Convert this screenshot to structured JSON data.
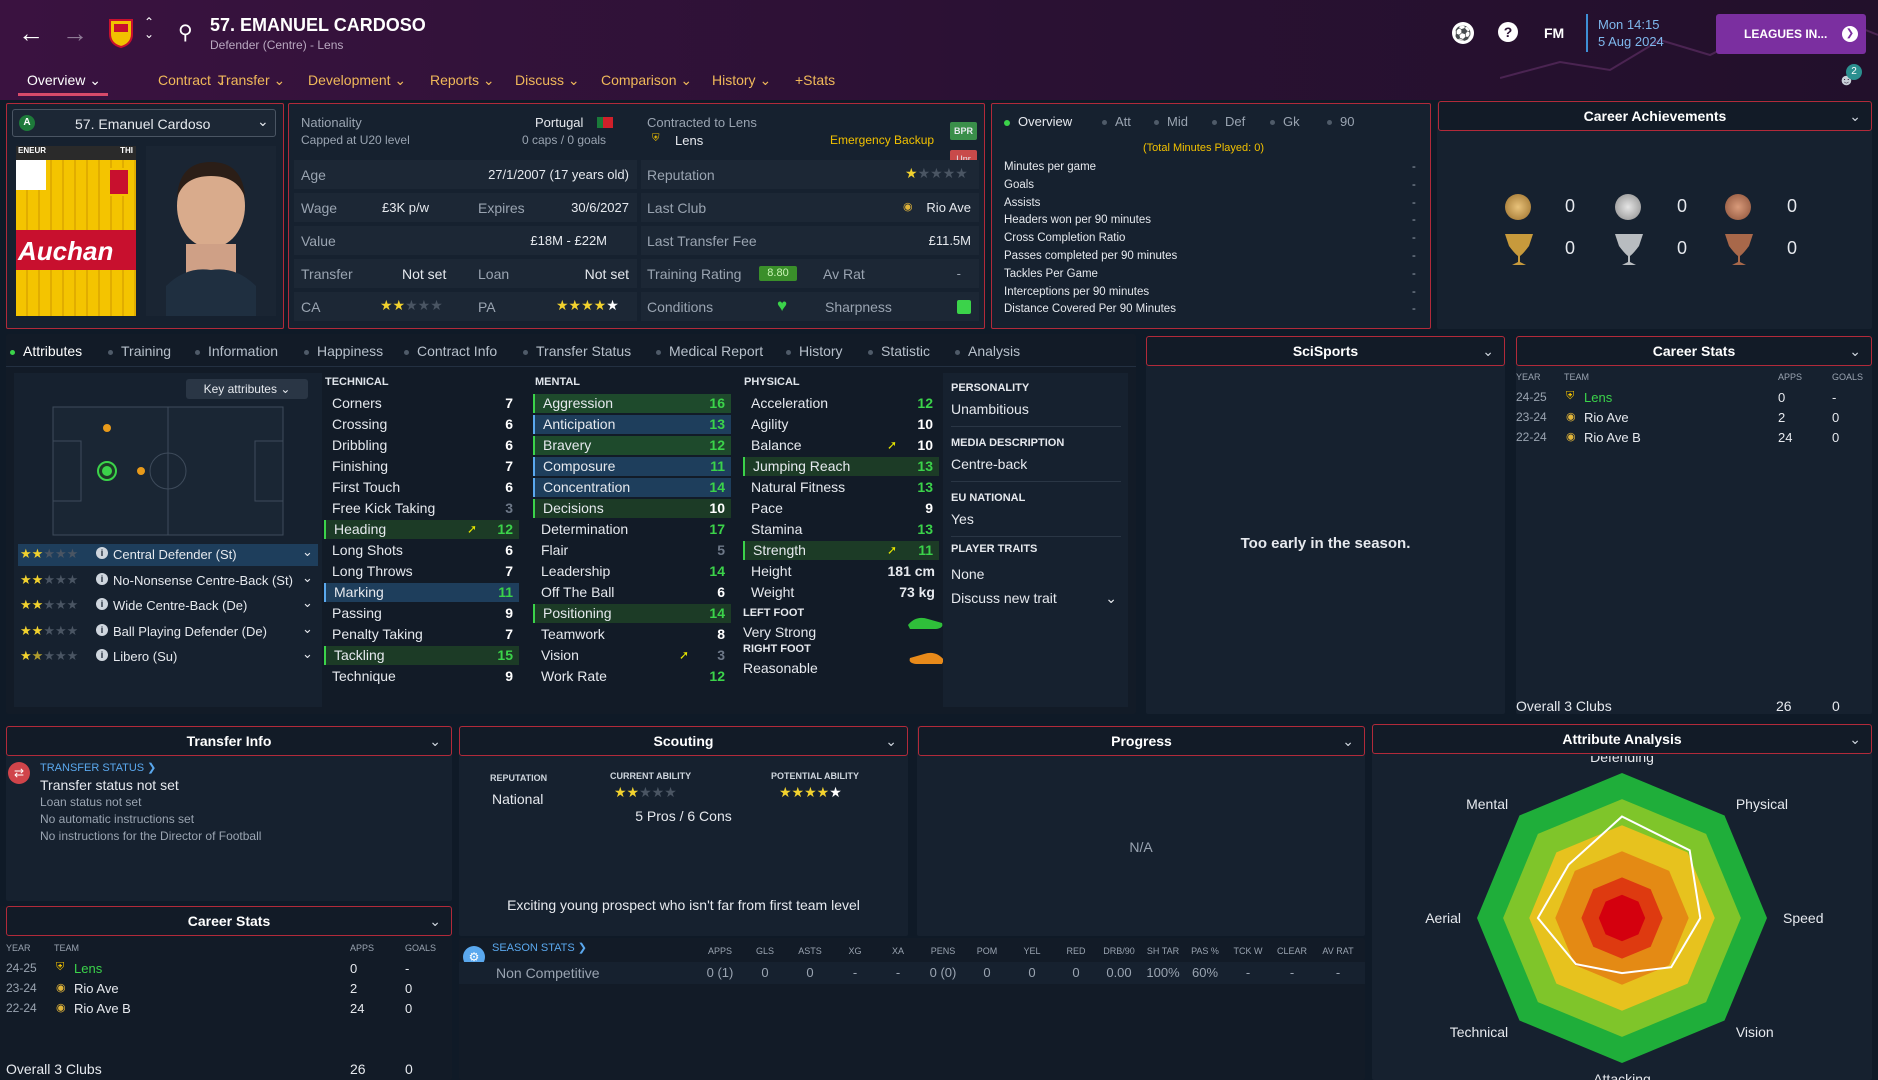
{
  "header": {
    "player_title": "57. EMANUEL CARDOSO",
    "player_subtitle": "Defender (Centre) - Lens",
    "fm_label": "FM",
    "datetime_line1": "Mon 14:15",
    "datetime_line2": "5 Aug 2024",
    "leagues_button": "LEAGUES IN...",
    "notif_count": "2",
    "tabs": [
      "Overview",
      "Contract",
      "Transfer",
      "Development",
      "Reports",
      "Discuss",
      "Comparison",
      "History",
      "+Stats"
    ]
  },
  "player_card": {
    "selector_name": "57. Emanuel Cardoso",
    "kit_text": "Auchan",
    "kit_top_left": "ENEUR",
    "kit_top_right": "THI"
  },
  "info": {
    "nationality_label": "Nationality",
    "nationality_value": "Portugal",
    "capped_label": "Capped at U20 level",
    "caps_goals": "0 caps / 0 goals",
    "contracted_label": "Contracted to Lens",
    "contracted_club": "Lens",
    "emergency": "Emergency Backup",
    "badge_bpr": "BPR",
    "badge_unr": "Unr",
    "age_label": "Age",
    "age_value": "27/1/2007 (17 years old)",
    "reputation_label": "Reputation",
    "wage_label": "Wage",
    "wage_value": "£3K p/w",
    "expires_label": "Expires",
    "expires_value": "30/6/2027",
    "lastclub_label": "Last Club",
    "lastclub_value": "Rio Ave",
    "value_label": "Value",
    "value_value": "£18M - £22M",
    "fee_label": "Last Transfer Fee",
    "fee_value": "£11.5M",
    "transfer_label": "Transfer",
    "transfer_value": "Not set",
    "loan_label": "Loan",
    "loan_value": "Not set",
    "training_label": "Training Rating",
    "training_value": "8.80",
    "avrat_label": "Av Rat",
    "avrat_value": "-",
    "ca_label": "CA",
    "pa_label": "PA",
    "conditions_label": "Conditions",
    "sharpness_label": "Sharpness"
  },
  "overview_stats": {
    "tabs": [
      "Overview",
      "Att",
      "Mid",
      "Def",
      "Gk",
      "90"
    ],
    "total_minutes": "(Total Minutes Played: 0)",
    "rows": [
      {
        "label": "Minutes per game",
        "value": "-"
      },
      {
        "label": "Goals",
        "value": "-"
      },
      {
        "label": "Assists",
        "value": "-"
      },
      {
        "label": "Headers won per 90 minutes",
        "value": "-"
      },
      {
        "label": "Cross Completion Ratio",
        "value": "-"
      },
      {
        "label": "Passes completed per 90 minutes",
        "value": "-"
      },
      {
        "label": "Tackles Per Game",
        "value": "-"
      },
      {
        "label": "Interceptions per 90 minutes",
        "value": "-"
      },
      {
        "label": "Distance Covered Per 90 Minutes",
        "value": "-"
      }
    ]
  },
  "achievements": {
    "title": "Career Achievements",
    "medals": [
      "0",
      "0",
      "0"
    ],
    "trophies": [
      "0",
      "0",
      "0"
    ]
  },
  "subtabs": [
    "Attributes",
    "Training",
    "Information",
    "Happiness",
    "Contract Info",
    "Transfer Status",
    "Medical Report",
    "History",
    "Statistic",
    "Analysis"
  ],
  "positions": {
    "key_attributes": "Key attributes",
    "roles": [
      {
        "label": "Central Defender (St)",
        "stars": 2
      },
      {
        "label": "No-Nonsense Centre-Back (St)",
        "stars": 2
      },
      {
        "label": "Wide Centre-Back (De)",
        "stars": 2
      },
      {
        "label": "Ball Playing Defender (De)",
        "stars": 2
      },
      {
        "label": "Libero (Su)",
        "stars": 1.5
      }
    ]
  },
  "attributes": {
    "technical_title": "TECHNICAL",
    "technical": [
      {
        "name": "Corners",
        "value": "7",
        "hl": "",
        "col": "white"
      },
      {
        "name": "Crossing",
        "value": "6",
        "hl": "",
        "col": "white"
      },
      {
        "name": "Dribbling",
        "value": "6",
        "hl": "",
        "col": "white"
      },
      {
        "name": "Finishing",
        "value": "7",
        "hl": "",
        "col": "white"
      },
      {
        "name": "First Touch",
        "value": "6",
        "hl": "",
        "col": "white"
      },
      {
        "name": "Free Kick Taking",
        "value": "3",
        "hl": "",
        "col": "dim"
      },
      {
        "name": "Heading",
        "value": "12",
        "hl": "dgreen",
        "col": "green",
        "arrow": true
      },
      {
        "name": "Long Shots",
        "value": "6",
        "hl": "",
        "col": "white"
      },
      {
        "name": "Long Throws",
        "value": "7",
        "hl": "",
        "col": "white"
      },
      {
        "name": "Marking",
        "value": "11",
        "hl": "blue",
        "col": "green"
      },
      {
        "name": "Passing",
        "value": "9",
        "hl": "",
        "col": "white"
      },
      {
        "name": "Penalty Taking",
        "value": "7",
        "hl": "",
        "col": "white"
      },
      {
        "name": "Tackling",
        "value": "15",
        "hl": "dgreen",
        "col": "green"
      },
      {
        "name": "Technique",
        "value": "9",
        "hl": "",
        "col": "white"
      }
    ],
    "mental_title": "MENTAL",
    "mental": [
      {
        "name": "Aggression",
        "value": "16",
        "hl": "green",
        "col": "green"
      },
      {
        "name": "Anticipation",
        "value": "13",
        "hl": "blue",
        "col": "green"
      },
      {
        "name": "Bravery",
        "value": "12",
        "hl": "green",
        "col": "green"
      },
      {
        "name": "Composure",
        "value": "11",
        "hl": "blue",
        "col": "green"
      },
      {
        "name": "Concentration",
        "value": "14",
        "hl": "blue",
        "col": "green"
      },
      {
        "name": "Decisions",
        "value": "10",
        "hl": "dgreen",
        "col": "white"
      },
      {
        "name": "Determination",
        "value": "17",
        "hl": "",
        "col": "green"
      },
      {
        "name": "Flair",
        "value": "5",
        "hl": "",
        "col": "dim"
      },
      {
        "name": "Leadership",
        "value": "14",
        "hl": "",
        "col": "green"
      },
      {
        "name": "Off The Ball",
        "value": "6",
        "hl": "",
        "col": "white"
      },
      {
        "name": "Positioning",
        "value": "14",
        "hl": "dgreen",
        "col": "green"
      },
      {
        "name": "Teamwork",
        "value": "8",
        "hl": "",
        "col": "white"
      },
      {
        "name": "Vision",
        "value": "3",
        "hl": "",
        "col": "dim",
        "arrow": true
      },
      {
        "name": "Work Rate",
        "value": "12",
        "hl": "",
        "col": "green"
      }
    ],
    "physical_title": "PHYSICAL",
    "physical": [
      {
        "name": "Acceleration",
        "value": "12",
        "hl": "",
        "col": "green"
      },
      {
        "name": "Agility",
        "value": "10",
        "hl": "",
        "col": "white"
      },
      {
        "name": "Balance",
        "value": "10",
        "hl": "",
        "col": "white",
        "arrow": true
      },
      {
        "name": "Jumping Reach",
        "value": "13",
        "hl": "dgreen",
        "col": "green"
      },
      {
        "name": "Natural Fitness",
        "value": "13",
        "hl": "",
        "col": "green"
      },
      {
        "name": "Pace",
        "value": "9",
        "hl": "",
        "col": "white"
      },
      {
        "name": "Stamina",
        "value": "13",
        "hl": "",
        "col": "green"
      },
      {
        "name": "Strength",
        "value": "11",
        "hl": "dgreen",
        "col": "green",
        "arrow": true
      }
    ],
    "height_label": "Height",
    "height_value": "181 cm",
    "weight_label": "Weight",
    "weight_value": "73 kg",
    "left_foot_title": "LEFT FOOT",
    "left_foot_value": "Very Strong",
    "right_foot_title": "RIGHT FOOT",
    "right_foot_value": "Reasonable"
  },
  "personality": {
    "personality_title": "PERSONALITY",
    "personality_value": "Unambitious",
    "media_title": "MEDIA DESCRIPTION",
    "media_value": "Centre-back",
    "eu_title": "EU NATIONAL",
    "eu_value": "Yes",
    "traits_title": "PLAYER TRAITS",
    "traits_value": "None",
    "discuss_trait": "Discuss new trait"
  },
  "scisports": {
    "title": "SciSports",
    "message": "Too early in the season."
  },
  "career_stats": {
    "title": "Career Stats",
    "headers": [
      "YEAR",
      "TEAM",
      "APPS",
      "GOALS"
    ],
    "rows": [
      {
        "year": "24-25",
        "team": "Lens",
        "apps": "0",
        "goals": "-"
      },
      {
        "year": "23-24",
        "team": "Rio Ave",
        "apps": "2",
        "goals": "0"
      },
      {
        "year": "22-24",
        "team": "Rio Ave B",
        "apps": "24",
        "goals": "0"
      }
    ],
    "total_label": "Overall 3 Clubs",
    "total_apps": "26",
    "total_goals": "0"
  },
  "transfer_info": {
    "title": "Transfer Info",
    "status_link": "TRANSFER STATUS",
    "line1": "Transfer status not set",
    "line2": "Loan status not set",
    "line3": "No automatic instructions set",
    "line4": "No instructions for the Director of Football"
  },
  "scouting": {
    "title": "Scouting",
    "rep_label": "REPUTATION",
    "rep_value": "National",
    "ca_label": "CURRENT ABILITY",
    "pa_label": "POTENTIAL ABILITY",
    "pros_cons": "5 Pros / 6 Cons",
    "summary": "Exciting young prospect who isn't far from first team level"
  },
  "progress": {
    "title": "Progress",
    "value": "N/A"
  },
  "season_stats": {
    "link": "SEASON STATS",
    "headers": [
      "APPS",
      "GLS",
      "ASTS",
      "XG",
      "XA",
      "PENS",
      "POM",
      "YEL",
      "RED",
      "DRB/90",
      "SH TAR",
      "PAS %",
      "TCK W",
      "CLEAR",
      "AV RAT"
    ],
    "row_label": "Non Competitive",
    "values": [
      "0 (1)",
      "0",
      "0",
      "-",
      "-",
      "0 (0)",
      "0",
      "0",
      "0",
      "0.00",
      "100%",
      "60%",
      "-",
      "-",
      "-"
    ]
  },
  "attribute_analysis": {
    "title": "Attribute Analysis",
    "axes": [
      "Defending",
      "Physical",
      "Speed",
      "Vision",
      "Attacking",
      "Technical",
      "Aerial",
      "Mental"
    ],
    "values": [
      0.7,
      0.66,
      0.54,
      0.48,
      0.38,
      0.45,
      0.58,
      0.52
    ]
  },
  "colors": {
    "accent": "#f0b95a",
    "positive": "#3bd34a",
    "highlight_border": "#b22a3a",
    "leagues_btn": "#7b2fa0"
  }
}
